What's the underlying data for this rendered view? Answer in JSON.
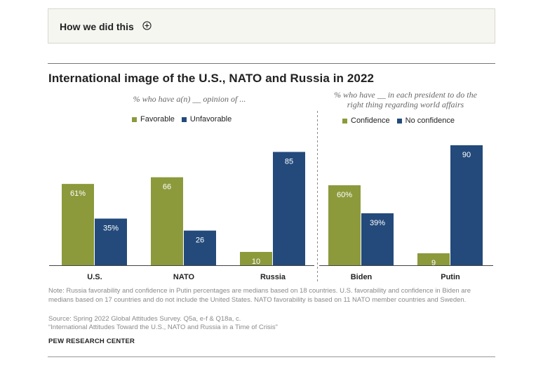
{
  "how_box": {
    "label": "How we did this"
  },
  "colors": {
    "favorable": "#8c9a3c",
    "unfavorable": "#234a7b",
    "axis": "#444444",
    "divider": "#888888"
  },
  "chart_data": [
    {
      "type": "bar",
      "title": "International image of the U.S., NATO and Russia in 2022",
      "subtitle": "% who have a(n) __ opinion of ...",
      "categories": [
        "U.S.",
        "NATO",
        "Russia"
      ],
      "series": [
        {
          "name": "Favorable",
          "values": [
            61,
            66,
            10
          ],
          "labels": [
            "61%",
            "66",
            "10"
          ]
        },
        {
          "name": "Unfavorable",
          "values": [
            35,
            26,
            85
          ],
          "labels": [
            "35%",
            "26",
            "85"
          ]
        }
      ],
      "ylim": [
        0,
        100
      ],
      "legend": "top"
    },
    {
      "type": "bar",
      "subtitle_line1": "% who have __ in each president to do the",
      "subtitle_line2": "right thing regarding world affairs",
      "categories": [
        "Biden",
        "Putin"
      ],
      "series": [
        {
          "name": "Confidence",
          "values": [
            60,
            9
          ],
          "labels": [
            "60%",
            "9"
          ]
        },
        {
          "name": "No confidence",
          "values": [
            39,
            90
          ],
          "labels": [
            "39%",
            "90"
          ]
        }
      ],
      "ylim": [
        0,
        100
      ],
      "legend": "top"
    }
  ],
  "notes": {
    "note": "Note: Russia favorability and confidence in Putin percentages are medians based on 18 countries. U.S. favorability and confidence in Biden are medians based on 17 countries and do not include the United States. NATO favorability is based on 11 NATO member countries and Sweden.",
    "source": "Source: Spring 2022 Global Attitudes Survey. Q5a, e-f & Q18a, c.",
    "report": "“International Attitudes Toward the U.S., NATO and Russia in a Time of Crisis”",
    "brand": "PEW RESEARCH CENTER"
  }
}
